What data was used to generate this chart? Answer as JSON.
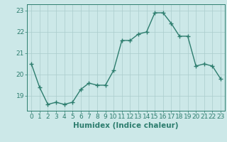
{
  "x": [
    0,
    1,
    2,
    3,
    4,
    5,
    6,
    7,
    8,
    9,
    10,
    11,
    12,
    13,
    14,
    15,
    16,
    17,
    18,
    19,
    20,
    21,
    22,
    23
  ],
  "y": [
    20.5,
    19.4,
    18.6,
    18.7,
    18.6,
    18.7,
    19.3,
    19.6,
    19.5,
    19.5,
    20.2,
    21.6,
    21.6,
    21.9,
    22.0,
    22.9,
    22.9,
    22.4,
    21.8,
    21.8,
    20.4,
    20.5,
    20.4,
    19.8
  ],
  "line_color": "#2d7d6e",
  "marker": "+",
  "marker_size": 4,
  "linewidth": 1.0,
  "xlabel": "Humidex (Indice chaleur)",
  "xlim": [
    -0.5,
    23.5
  ],
  "ylim": [
    18.3,
    23.3
  ],
  "yticks": [
    19,
    20,
    21,
    22,
    23
  ],
  "xticks": [
    0,
    1,
    2,
    3,
    4,
    5,
    6,
    7,
    8,
    9,
    10,
    11,
    12,
    13,
    14,
    15,
    16,
    17,
    18,
    19,
    20,
    21,
    22,
    23
  ],
  "bg_color": "#cce8e8",
  "grid_color": "#aacccc",
  "tick_color": "#2d7d6e",
  "label_color": "#2d7d6e",
  "xlabel_fontsize": 7.5,
  "tick_fontsize": 6.5
}
